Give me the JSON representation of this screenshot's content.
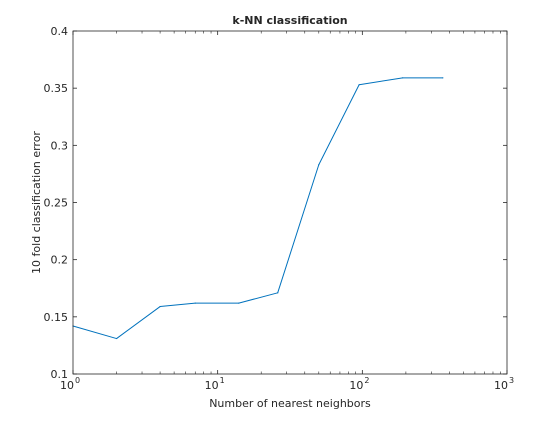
{
  "chart_data": {
    "type": "line",
    "title": "k-NN classification",
    "xlabel": "Number of nearest neighbors",
    "ylabel": "10 fold classification error",
    "xscale": "log",
    "xlim": [
      1,
      1000
    ],
    "ylim": [
      0.1,
      0.4
    ],
    "grid": false,
    "legend": "none",
    "xticks": [
      {
        "value": 1,
        "base": "10",
        "exp": "0"
      },
      {
        "value": 10,
        "base": "10",
        "exp": "1"
      },
      {
        "value": 100,
        "base": "10",
        "exp": "2"
      },
      {
        "value": 1000,
        "base": "10",
        "exp": "3"
      }
    ],
    "yticks": [
      {
        "value": 0.1,
        "label": "0.1"
      },
      {
        "value": 0.15,
        "label": "0.15"
      },
      {
        "value": 0.2,
        "label": "0.2"
      },
      {
        "value": 0.25,
        "label": "0.25"
      },
      {
        "value": 0.3,
        "label": "0.3"
      },
      {
        "value": 0.35,
        "label": "0.35"
      },
      {
        "value": 0.4,
        "label": "0.4"
      }
    ],
    "series": [
      {
        "color": "#0072bd",
        "x": [
          1,
          2,
          4,
          7,
          14,
          26,
          50,
          95,
          190,
          360
        ],
        "y": [
          0.142,
          0.131,
          0.159,
          0.162,
          0.162,
          0.171,
          0.283,
          0.353,
          0.359,
          0.359
        ]
      }
    ]
  }
}
